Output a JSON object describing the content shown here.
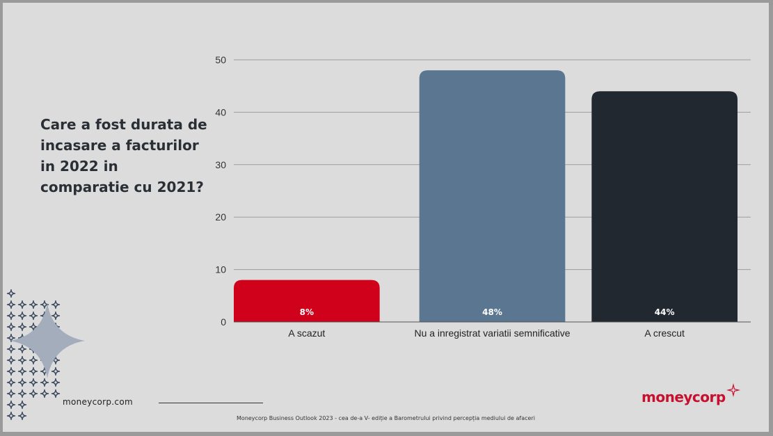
{
  "question": "Care a fost durata de incasare a facturilor in 2022 in comparatie cu 2021?",
  "site": "moneycorp.com",
  "footer": "Moneycorp Business Outlook 2023 - cea de-a V- ediție a Barometrului privind percepția mediului de afaceri",
  "logo": {
    "text": "moneycorp",
    "icon": "star-sparkle-icon"
  },
  "colors": {
    "bar1": "#d0021b",
    "bar2": "#5a7690",
    "bar3": "#212830",
    "grid": "#9d9d9d"
  },
  "chart_data": {
    "type": "bar",
    "categories": [
      "A scazut",
      "Nu a inregistrat variatii semnificative",
      "A crescut"
    ],
    "values": [
      8,
      48,
      44
    ],
    "data_labels": [
      "8%",
      "48%",
      "44%"
    ],
    "yticks": [
      0,
      10,
      20,
      30,
      40,
      50
    ],
    "ylim": [
      0,
      50
    ],
    "grid": true,
    "legend": "none"
  }
}
